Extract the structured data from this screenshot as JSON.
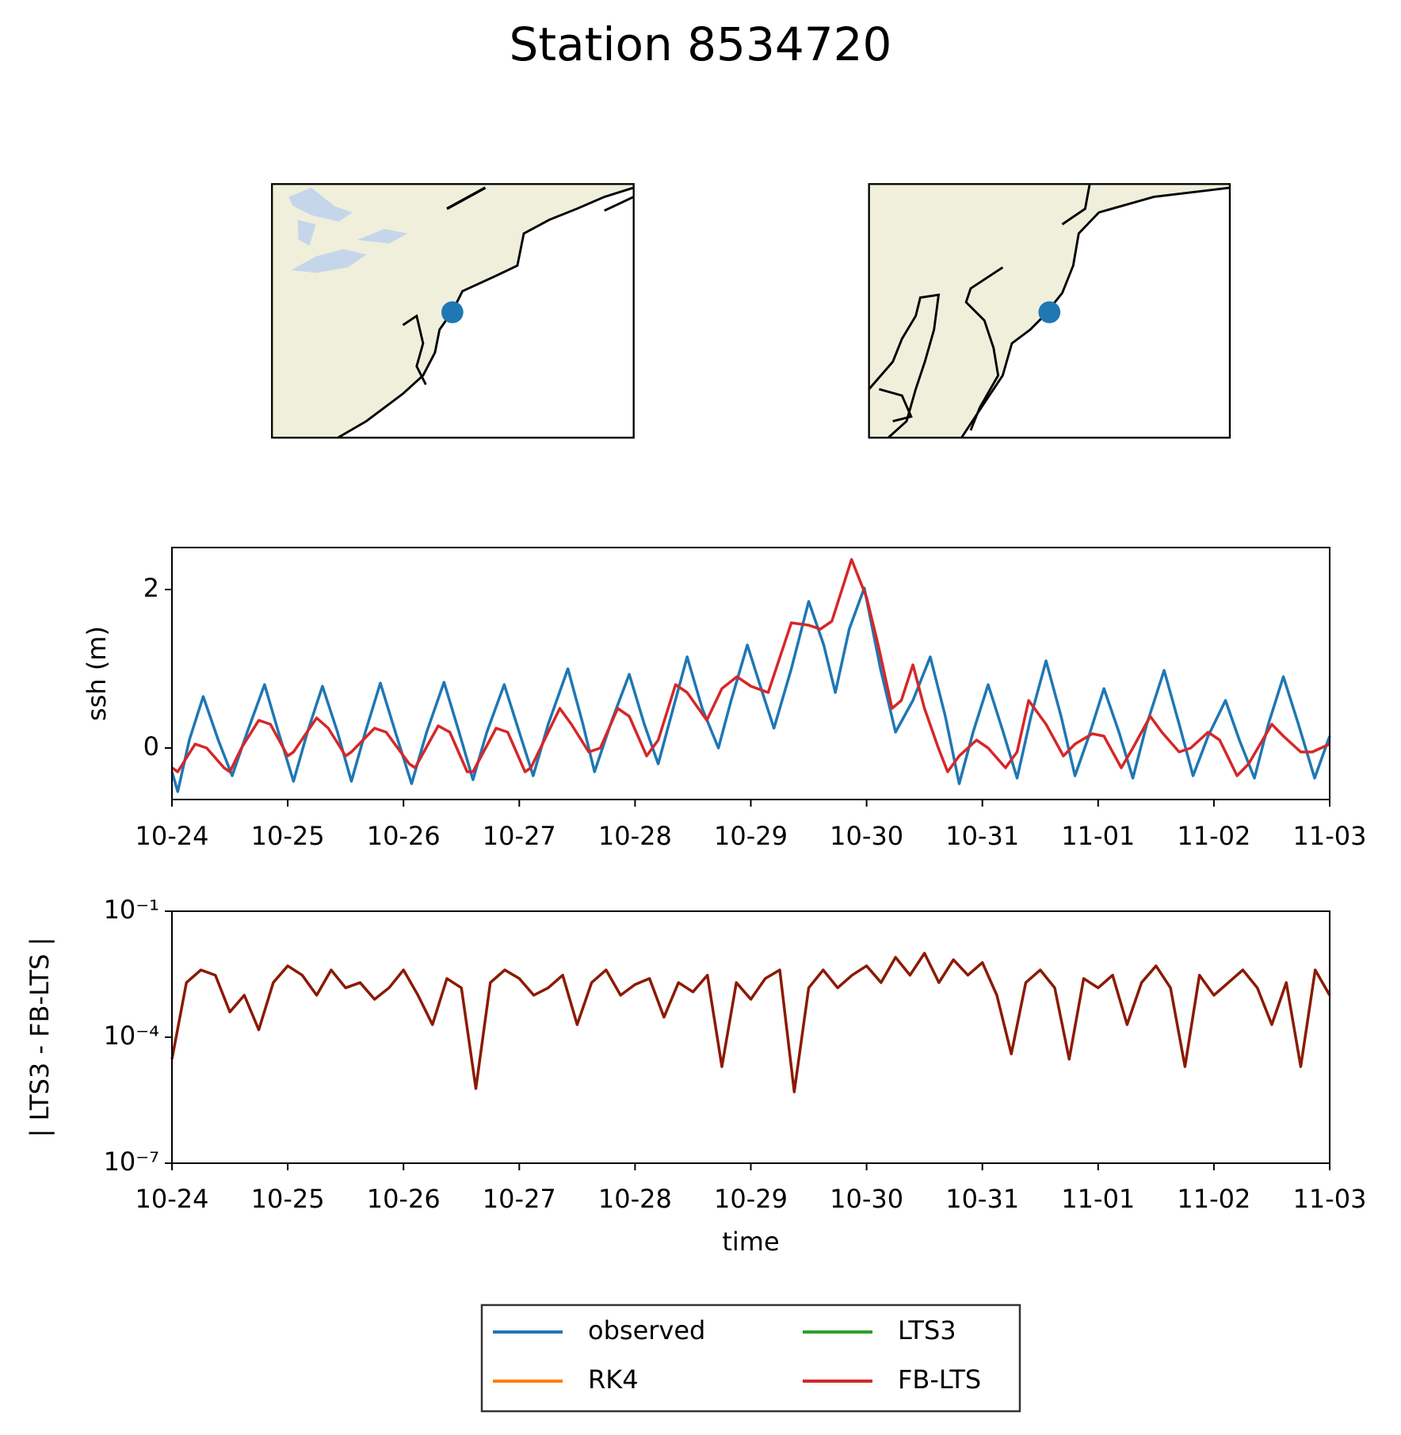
{
  "title": "Station 8534720",
  "legend": {
    "columns": 2,
    "entries": [
      {
        "name": "observed",
        "color": "#1f77b4"
      },
      {
        "name": "RK4",
        "color": "#ff7f0e"
      },
      {
        "name": "LTS3",
        "color": "#2ca02c"
      },
      {
        "name": "FB-LTS",
        "color": "#d62728"
      }
    ]
  },
  "chart_data": [
    {
      "type": "line",
      "ylabel": "ssh (m)",
      "xlim": [
        0,
        10
      ],
      "xticks": [
        {
          "value": 0,
          "label": "10-24"
        },
        {
          "value": 1,
          "label": "10-25"
        },
        {
          "value": 2,
          "label": "10-26"
        },
        {
          "value": 3,
          "label": "10-27"
        },
        {
          "value": 4,
          "label": "10-28"
        },
        {
          "value": 5,
          "label": "10-29"
        },
        {
          "value": 6,
          "label": "10-30"
        },
        {
          "value": 7,
          "label": "10-31"
        },
        {
          "value": 8,
          "label": "11-01"
        },
        {
          "value": 9,
          "label": "11-02"
        },
        {
          "value": 10,
          "label": "11-03"
        }
      ],
      "ylim": [
        -0.65,
        2.53
      ],
      "yticks": [
        0,
        2
      ],
      "series": [
        {
          "name": "observed",
          "color": "#1f77b4",
          "x": [
            0.0,
            0.05,
            0.15,
            0.27,
            0.4,
            0.52,
            0.65,
            0.8,
            0.92,
            1.05,
            1.17,
            1.3,
            1.43,
            1.55,
            1.67,
            1.8,
            1.93,
            2.07,
            2.2,
            2.35,
            2.48,
            2.6,
            2.72,
            2.87,
            3.0,
            3.12,
            3.25,
            3.42,
            3.55,
            3.65,
            3.8,
            3.95,
            4.08,
            4.2,
            4.32,
            4.45,
            4.58,
            4.72,
            4.83,
            4.97,
            5.1,
            5.2,
            5.35,
            5.5,
            5.63,
            5.73,
            5.85,
            5.98,
            6.12,
            6.25,
            6.4,
            6.55,
            6.68,
            6.8,
            6.92,
            7.05,
            7.18,
            7.3,
            7.42,
            7.55,
            7.68,
            7.8,
            7.92,
            8.05,
            8.18,
            8.3,
            8.42,
            8.57,
            8.7,
            8.82,
            8.95,
            9.1,
            9.22,
            9.35,
            9.47,
            9.6,
            9.73,
            9.87,
            10.0
          ],
          "values": [
            -0.3,
            -0.55,
            0.1,
            0.65,
            0.1,
            -0.35,
            0.2,
            0.8,
            0.2,
            -0.42,
            0.2,
            0.78,
            0.2,
            -0.42,
            0.2,
            0.82,
            0.2,
            -0.45,
            0.2,
            0.83,
            0.2,
            -0.4,
            0.2,
            0.8,
            0.2,
            -0.35,
            0.3,
            1.0,
            0.3,
            -0.3,
            0.35,
            0.93,
            0.3,
            -0.2,
            0.45,
            1.15,
            0.5,
            0.0,
            0.6,
            1.3,
            0.7,
            0.25,
            1.0,
            1.85,
            1.3,
            0.7,
            1.5,
            2.02,
            1.0,
            0.2,
            0.6,
            1.15,
            0.4,
            -0.45,
            0.2,
            0.8,
            0.2,
            -0.38,
            0.4,
            1.1,
            0.4,
            -0.35,
            0.15,
            0.75,
            0.2,
            -0.38,
            0.3,
            0.98,
            0.3,
            -0.35,
            0.15,
            0.6,
            0.1,
            -0.38,
            0.3,
            0.9,
            0.3,
            -0.38,
            0.15
          ]
        },
        {
          "name": "FB-LTS",
          "color": "#d62728",
          "x": [
            0.0,
            0.05,
            0.2,
            0.3,
            0.45,
            0.5,
            0.6,
            0.75,
            0.85,
            1.0,
            1.05,
            1.25,
            1.35,
            1.5,
            1.55,
            1.75,
            1.85,
            2.05,
            2.1,
            2.3,
            2.4,
            2.55,
            2.6,
            2.8,
            2.9,
            3.05,
            3.1,
            3.35,
            3.45,
            3.6,
            3.7,
            3.85,
            3.95,
            4.1,
            4.2,
            4.35,
            4.45,
            4.62,
            4.75,
            4.88,
            5.0,
            5.15,
            5.35,
            5.5,
            5.6,
            5.7,
            5.87,
            6.0,
            6.1,
            6.22,
            6.3,
            6.4,
            6.5,
            6.62,
            6.7,
            6.8,
            6.95,
            7.05,
            7.2,
            7.3,
            7.4,
            7.55,
            7.7,
            7.8,
            7.95,
            8.05,
            8.2,
            8.3,
            8.45,
            8.55,
            8.7,
            8.8,
            8.95,
            9.05,
            9.2,
            9.3,
            9.5,
            9.6,
            9.75,
            9.85,
            10.0
          ],
          "values": [
            -0.25,
            -0.3,
            0.05,
            0.0,
            -0.25,
            -0.3,
            0.0,
            0.35,
            0.3,
            -0.1,
            -0.05,
            0.38,
            0.25,
            -0.1,
            -0.05,
            0.25,
            0.2,
            -0.2,
            -0.25,
            0.28,
            0.2,
            -0.3,
            -0.3,
            0.25,
            0.2,
            -0.3,
            -0.25,
            0.5,
            0.3,
            -0.05,
            0.0,
            0.5,
            0.4,
            -0.1,
            0.1,
            0.8,
            0.7,
            0.35,
            0.75,
            0.9,
            0.78,
            0.7,
            1.58,
            1.55,
            1.5,
            1.6,
            2.38,
            1.9,
            1.3,
            0.5,
            0.6,
            1.05,
            0.5,
            0.0,
            -0.3,
            -0.1,
            0.1,
            0.0,
            -0.25,
            -0.05,
            0.6,
            0.3,
            -0.1,
            0.05,
            0.18,
            0.15,
            -0.25,
            0.0,
            0.4,
            0.2,
            -0.05,
            0.0,
            0.2,
            0.1,
            -0.35,
            -0.2,
            0.3,
            0.15,
            -0.05,
            -0.05,
            0.05
          ]
        }
      ]
    },
    {
      "type": "line",
      "log_scale": true,
      "xlabel": "time",
      "ylabel": "| LTS3 - FB-LTS |",
      "xlim": [
        0,
        10
      ],
      "xticks": [
        {
          "value": 0,
          "label": "10-24"
        },
        {
          "value": 1,
          "label": "10-25"
        },
        {
          "value": 2,
          "label": "10-26"
        },
        {
          "value": 3,
          "label": "10-27"
        },
        {
          "value": 4,
          "label": "10-28"
        },
        {
          "value": 5,
          "label": "10-29"
        },
        {
          "value": 6,
          "label": "10-30"
        },
        {
          "value": 7,
          "label": "10-31"
        },
        {
          "value": 8,
          "label": "11-01"
        },
        {
          "value": 9,
          "label": "11-02"
        },
        {
          "value": 10,
          "label": "11-03"
        }
      ],
      "ylim": [
        1e-07,
        0.1
      ],
      "yticks": [
        {
          "value": 1e-07,
          "label": "10⁻⁷"
        },
        {
          "value": 0.0001,
          "label": "10⁻⁴"
        },
        {
          "value": 0.1,
          "label": "10⁻¹"
        }
      ],
      "series": [
        {
          "color": "#8b1a00",
          "x": [
            0,
            0.125,
            0.25,
            0.375,
            0.5,
            0.625,
            0.75,
            0.875,
            1,
            1.125,
            1.25,
            1.375,
            1.5,
            1.625,
            1.75,
            1.875,
            2,
            2.125,
            2.25,
            2.375,
            2.5,
            2.625,
            2.75,
            2.875,
            3,
            3.125,
            3.25,
            3.375,
            3.5,
            3.625,
            3.75,
            3.875,
            4,
            4.125,
            4.25,
            4.375,
            4.5,
            4.625,
            4.75,
            4.875,
            5,
            5.125,
            5.25,
            5.375,
            5.5,
            5.625,
            5.75,
            5.875,
            6,
            6.125,
            6.25,
            6.375,
            6.5,
            6.625,
            6.75,
            6.875,
            7,
            7.125,
            7.25,
            7.375,
            7.5,
            7.625,
            7.75,
            7.875,
            8,
            8.125,
            8.25,
            8.375,
            8.5,
            8.625,
            8.75,
            8.875,
            9,
            9.125,
            9.25,
            9.375,
            9.5,
            9.625,
            9.75,
            9.875,
            10
          ],
          "values": [
            3e-05,
            0.002,
            0.004,
            0.003,
            0.0004,
            0.001,
            0.00015,
            0.002,
            0.005,
            0.003,
            0.001,
            0.004,
            0.0015,
            0.002,
            0.0008,
            0.0015,
            0.004,
            0.001,
            0.0002,
            0.0025,
            0.0015,
            6e-06,
            0.002,
            0.004,
            0.0025,
            0.001,
            0.0015,
            0.003,
            0.0002,
            0.002,
            0.004,
            0.001,
            0.0018,
            0.0025,
            0.0003,
            0.002,
            0.0012,
            0.003,
            2e-05,
            0.002,
            0.0008,
            0.0025,
            0.004,
            5e-06,
            0.0015,
            0.004,
            0.0015,
            0.003,
            0.005,
            0.002,
            0.008,
            0.003,
            0.01,
            0.002,
            0.007,
            0.003,
            0.006,
            0.001,
            4e-05,
            0.002,
            0.004,
            0.0015,
            3e-05,
            0.0025,
            0.0015,
            0.003,
            0.0002,
            0.002,
            0.005,
            0.0015,
            2e-05,
            0.003,
            0.001,
            0.002,
            0.004,
            0.0015,
            0.0002,
            0.002,
            2e-05,
            0.004,
            0.001
          ]
        }
      ]
    }
  ]
}
